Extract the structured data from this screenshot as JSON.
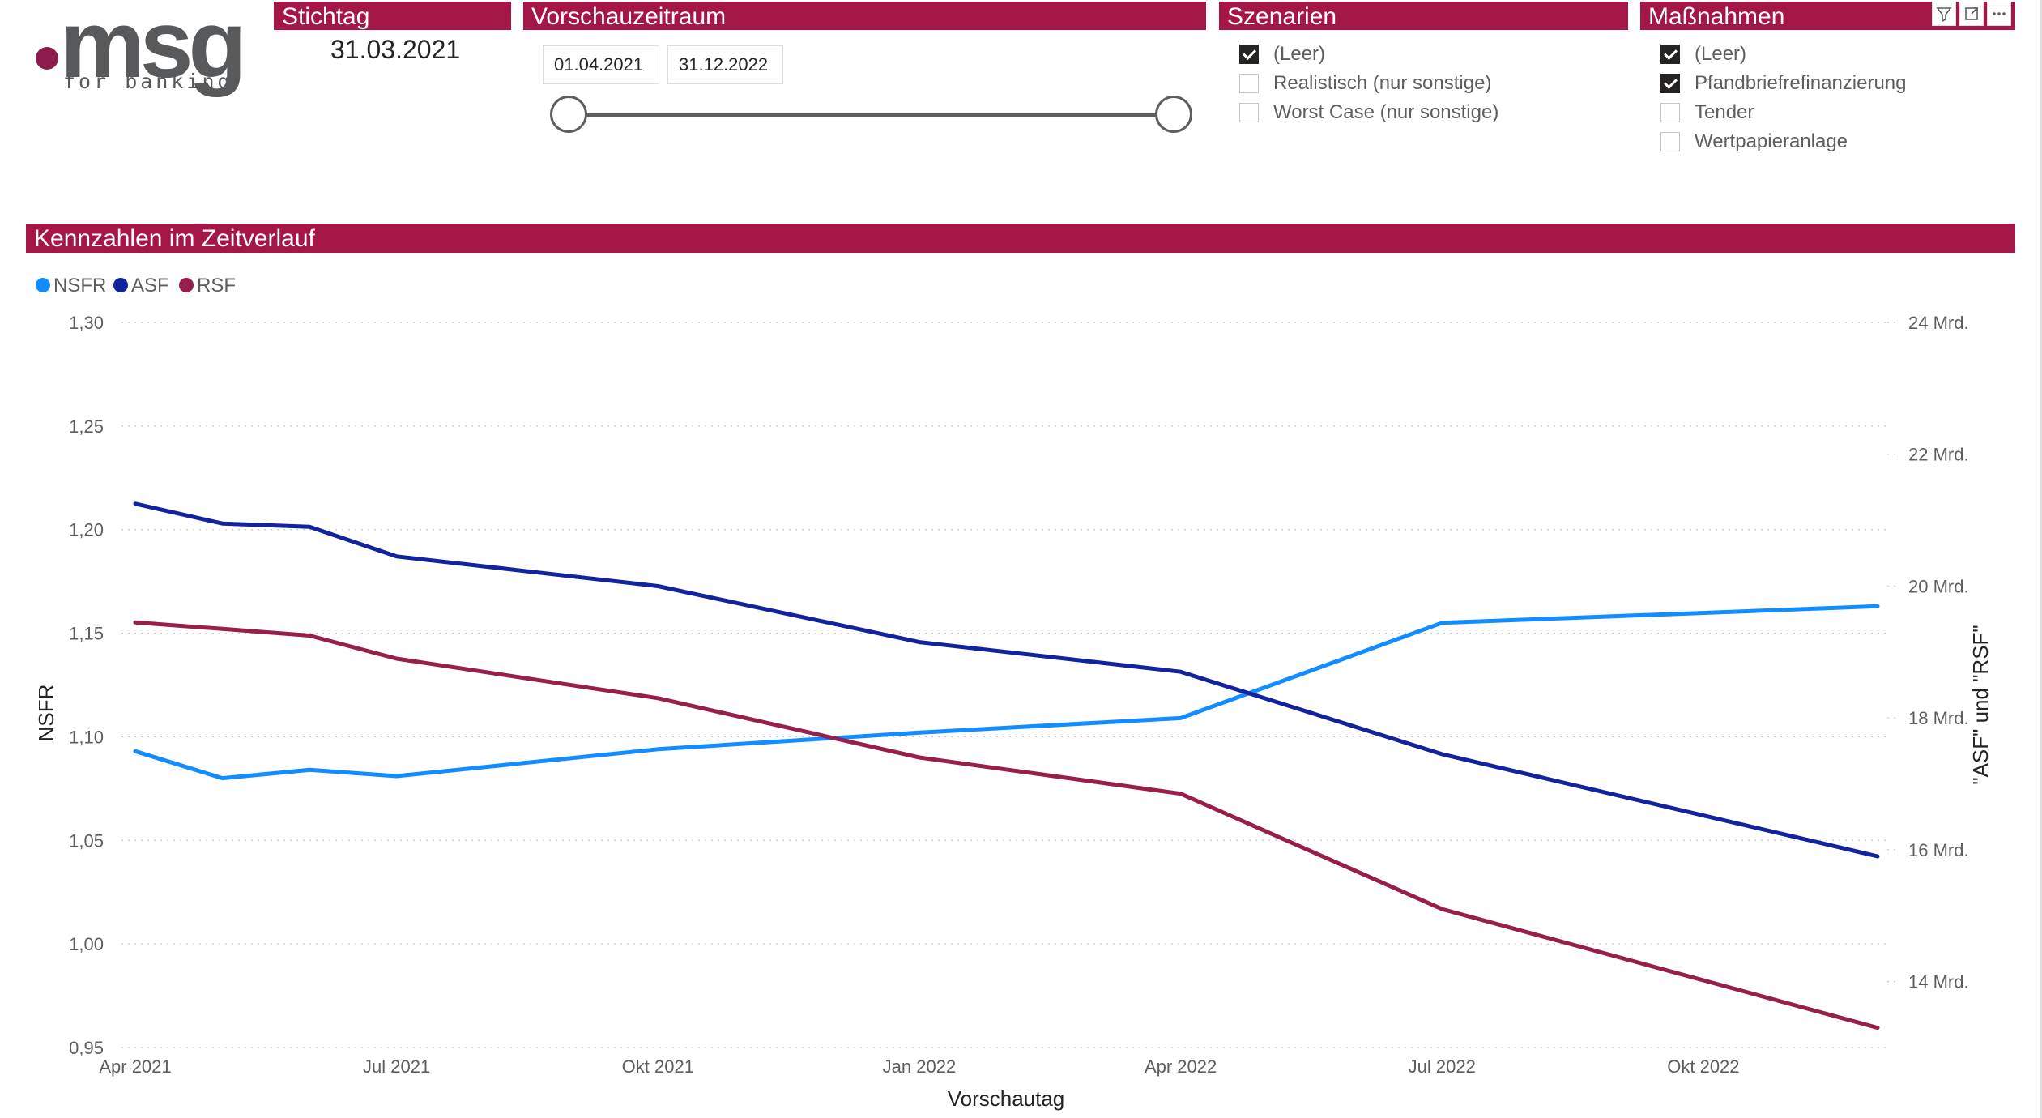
{
  "logo": {
    "word": "msg",
    "sub": "for banking"
  },
  "filters": {
    "stichtag": {
      "title": "Stichtag",
      "value": "31.03.2021"
    },
    "vorschauzeitraum": {
      "title": "Vorschauzeitraum",
      "from": "01.04.2021",
      "to": "31.12.2022"
    },
    "szenarien": {
      "title": "Szenarien",
      "items": [
        {
          "label": "(Leer)",
          "checked": true
        },
        {
          "label": "Realistisch (nur sonstige)",
          "checked": false
        },
        {
          "label": "Worst Case (nur sonstige)",
          "checked": false
        }
      ]
    },
    "massnahmen": {
      "title": "Maßnahmen",
      "items": [
        {
          "label": "(Leer)",
          "checked": true
        },
        {
          "label": "Pfandbriefrefinanzierung",
          "checked": true
        },
        {
          "label": "Tender",
          "checked": false
        },
        {
          "label": "Wertpapieranlage",
          "checked": false
        }
      ]
    }
  },
  "visual_header_icons": [
    "filter-icon",
    "focus-mode-icon",
    "more-options-icon"
  ],
  "chart_data": {
    "type": "line",
    "title": "Kennzahlen im Zeitverlauf",
    "xlabel": "Vorschautag",
    "ylabel_left": "NSFR",
    "ylabel_right": "\"ASF\" und \"RSF\"",
    "x": [
      "2021-04",
      "2021-05",
      "2021-06",
      "2021-07",
      "2021-10",
      "2022-01",
      "2022-04",
      "2022-07",
      "2022-12"
    ],
    "x_ticks": [
      "Apr 2021",
      "Jul 2021",
      "Okt 2021",
      "Jan 2022",
      "Apr 2022",
      "Jul 2022",
      "Okt 2022"
    ],
    "y_left_ticks": [
      "1,30",
      "1,25",
      "1,20",
      "1,15",
      "1,10",
      "1,05",
      "1,00",
      "0,95"
    ],
    "y_left_range": [
      0.95,
      1.3
    ],
    "y_right_ticks": [
      "24 Mrd.",
      "22 Mrd.",
      "20 Mrd.",
      "18 Mrd.",
      "16 Mrd.",
      "14 Mrd."
    ],
    "y_right_range": [
      13.0,
      24.0
    ],
    "grid": true,
    "legend_position": "top-left",
    "series": [
      {
        "name": "NSFR",
        "axis": "left",
        "color": "#118dff",
        "values": [
          1.093,
          1.08,
          1.084,
          1.081,
          1.094,
          1.102,
          1.109,
          1.155,
          1.163
        ]
      },
      {
        "name": "ASF",
        "axis": "right",
        "color": "#12239e",
        "values": [
          21.25,
          20.95,
          20.9,
          20.45,
          20.0,
          19.15,
          18.7,
          17.45,
          15.9
        ]
      },
      {
        "name": "RSF",
        "axis": "right",
        "color": "#981e4c",
        "values": [
          19.45,
          19.35,
          19.25,
          18.9,
          18.3,
          17.4,
          16.85,
          15.1,
          13.3
        ]
      }
    ]
  }
}
